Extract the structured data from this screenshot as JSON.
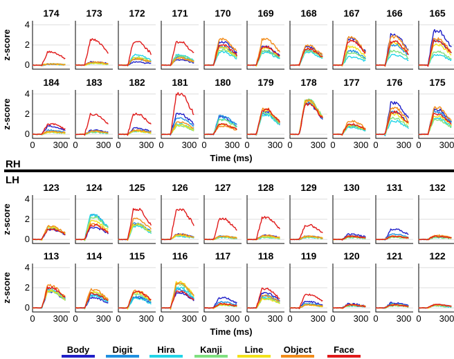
{
  "hemispheres": {
    "upper": "RH",
    "lower": "LH"
  },
  "legend": [
    {
      "name": "Body",
      "color": "#1f1fc8"
    },
    {
      "name": "Digit",
      "color": "#1f8fe0"
    },
    {
      "name": "Hira",
      "color": "#22d4e8"
    },
    {
      "name": "Kanji",
      "color": "#7fe07f"
    },
    {
      "name": "Line",
      "color": "#f2e21a"
    },
    {
      "name": "Object",
      "color": "#f28c1a"
    },
    {
      "name": "Face",
      "color": "#e01a1a"
    }
  ],
  "chart_data": {
    "type": "line",
    "ylabel": "z-score",
    "xlabel": "Time (ms)",
    "x_ticks": [
      "0",
      "300"
    ],
    "y_ticks": [
      "0",
      "2",
      "4"
    ],
    "xlim": [
      0,
      400
    ],
    "ylim": [
      -0.4,
      4.4
    ],
    "grid": "horizontal",
    "legend_position": "bottom",
    "series_names": [
      "Body",
      "Digit",
      "Hira",
      "Kanji",
      "Line",
      "Object",
      "Face"
    ],
    "rows": [
      {
        "hemisphere": "RH",
        "panels": [
          {
            "id": "174",
            "peaks": [
              0.1,
              0.1,
              0.1,
              0.1,
              0.1,
              0.1,
              1.3
            ]
          },
          {
            "id": "173",
            "peaks": [
              0.3,
              0.2,
              0.2,
              0.2,
              0.2,
              0.3,
              2.5
            ]
          },
          {
            "id": "172",
            "peaks": [
              0.3,
              0.6,
              1.0,
              0.8,
              0.7,
              0.6,
              2.3
            ]
          },
          {
            "id": "171",
            "peaks": [
              0.5,
              0.8,
              1.0,
              0.9,
              0.7,
              0.7,
              2.3
            ]
          },
          {
            "id": "170",
            "peaks": [
              2.3,
              1.8,
              1.3,
              1.5,
              1.7,
              2.6,
              2.0
            ]
          },
          {
            "id": "169",
            "peaks": [
              1.8,
              1.4,
              1.2,
              1.4,
              1.7,
              2.6,
              1.8
            ]
          },
          {
            "id": "168",
            "peaks": [
              1.8,
              1.5,
              1.3,
              1.4,
              1.6,
              1.9,
              1.6
            ]
          },
          {
            "id": "167",
            "peaks": [
              2.6,
              1.4,
              0.8,
              1.2,
              1.8,
              2.7,
              2.4
            ]
          },
          {
            "id": "166",
            "peaks": [
              3.0,
              2.0,
              1.0,
              1.4,
              2.2,
              2.8,
              2.3
            ]
          },
          {
            "id": "165",
            "peaks": [
              3.4,
              2.4,
              1.0,
              1.3,
              2.0,
              2.6,
              2.4
            ]
          }
        ]
      },
      {
        "hemisphere": "RH",
        "panels": [
          {
            "id": "184",
            "peaks": [
              0.8,
              0.4,
              0.2,
              0.2,
              0.2,
              0.3,
              1.0
            ]
          },
          {
            "id": "183",
            "peaks": [
              0.4,
              0.3,
              0.2,
              0.2,
              0.3,
              0.3,
              2.0
            ]
          },
          {
            "id": "182",
            "peaks": [
              0.6,
              0.4,
              0.3,
              0.3,
              0.3,
              0.4,
              2.0
            ]
          },
          {
            "id": "181",
            "peaks": [
              2.0,
              1.6,
              1.0,
              0.8,
              0.9,
              1.2,
              4.0
            ]
          },
          {
            "id": "180",
            "peaks": [
              1.7,
              1.8,
              1.5,
              1.4,
              1.0,
              0.8,
              1.0
            ]
          },
          {
            "id": "179",
            "peaks": [
              2.2,
              2.0,
              1.9,
              2.1,
              2.3,
              2.5,
              2.4
            ]
          },
          {
            "id": "178",
            "peaks": [
              3.0,
              3.1,
              3.3,
              3.4,
              3.2,
              3.3,
              3.0
            ]
          },
          {
            "id": "177",
            "peaks": [
              0.9,
              0.8,
              0.7,
              0.8,
              0.9,
              1.3,
              1.0
            ]
          },
          {
            "id": "176",
            "peaks": [
              3.1,
              2.2,
              1.3,
              1.6,
              2.0,
              2.6,
              2.2
            ]
          },
          {
            "id": "175",
            "peaks": [
              2.4,
              2.2,
              1.6,
              1.4,
              1.8,
              2.6,
              2.0
            ]
          }
        ]
      },
      {
        "hemisphere": "LH",
        "panels": [
          {
            "id": "123",
            "peaks": [
              1.0,
              1.1,
              1.2,
              1.1,
              1.2,
              1.3,
              1.0
            ]
          },
          {
            "id": "124",
            "peaks": [
              1.2,
              2.4,
              2.4,
              2.2,
              1.8,
              1.5,
              1.4
            ]
          },
          {
            "id": "125",
            "peaks": [
              1.5,
              1.6,
              1.3,
              1.4,
              1.5,
              2.0,
              3.0
            ]
          },
          {
            "id": "126",
            "peaks": [
              0.5,
              0.4,
              0.3,
              0.4,
              0.4,
              0.5,
              3.0
            ]
          },
          {
            "id": "127",
            "peaks": [
              0.3,
              0.3,
              0.2,
              0.2,
              0.3,
              0.3,
              2.0
            ]
          },
          {
            "id": "128",
            "peaks": [
              0.4,
              0.3,
              0.2,
              0.2,
              0.3,
              0.4,
              2.2
            ]
          },
          {
            "id": "129",
            "peaks": [
              0.3,
              0.3,
              0.2,
              0.2,
              0.3,
              0.3,
              1.4
            ]
          },
          {
            "id": "130",
            "peaks": [
              0.5,
              0.3,
              0.2,
              0.2,
              0.3,
              0.3,
              0.3
            ]
          },
          {
            "id": "131",
            "peaks": [
              1.0,
              0.5,
              0.3,
              0.2,
              0.3,
              0.3,
              0.3
            ]
          },
          {
            "id": "132",
            "peaks": [
              0.3,
              0.3,
              0.2,
              0.2,
              0.3,
              0.4,
              0.3
            ]
          }
        ]
      },
      {
        "hemisphere": "LH",
        "panels": [
          {
            "id": "113",
            "peaks": [
              1.6,
              1.7,
              1.8,
              1.6,
              1.7,
              2.2,
              2.0
            ]
          },
          {
            "id": "114",
            "peaks": [
              1.0,
              1.3,
              1.2,
              1.5,
              1.6,
              1.8,
              1.4
            ]
          },
          {
            "id": "115",
            "peaks": [
              1.0,
              1.1,
              0.9,
              1.3,
              1.5,
              1.7,
              1.6
            ]
          },
          {
            "id": "116",
            "peaks": [
              1.5,
              1.8,
              2.0,
              2.3,
              2.5,
              2.4,
              1.6
            ]
          },
          {
            "id": "117",
            "peaks": [
              1.0,
              0.6,
              0.3,
              0.3,
              0.3,
              0.4,
              0.4
            ]
          },
          {
            "id": "118",
            "peaks": [
              1.5,
              1.2,
              1.0,
              0.9,
              0.9,
              1.2,
              1.9
            ]
          },
          {
            "id": "119",
            "peaks": [
              0.6,
              0.4,
              0.3,
              0.3,
              0.3,
              0.3,
              1.3
            ]
          },
          {
            "id": "120",
            "peaks": [
              0.4,
              0.3,
              0.2,
              0.2,
              0.3,
              0.3,
              0.3
            ]
          },
          {
            "id": "121",
            "peaks": [
              0.5,
              0.4,
              0.3,
              0.2,
              0.3,
              0.3,
              0.3
            ]
          },
          {
            "id": "122",
            "peaks": [
              0.3,
              0.3,
              0.2,
              0.2,
              0.3,
              0.3,
              0.3
            ]
          }
        ]
      }
    ]
  }
}
